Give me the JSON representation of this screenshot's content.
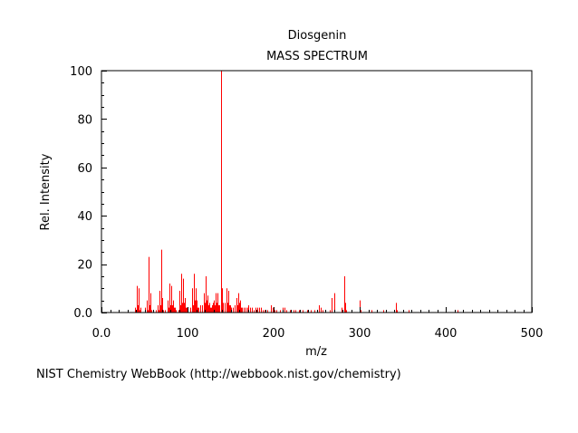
{
  "chart_data": {
    "type": "bar",
    "title": "Diosgenin",
    "subtitle": "MASS SPECTRUM",
    "xlabel": "m/z",
    "ylabel": "Rel. Intensity",
    "xlim": [
      0,
      500
    ],
    "ylim": [
      0,
      100
    ],
    "x_ticks": [
      0,
      100,
      200,
      300,
      400,
      500
    ],
    "x_tick_labels": [
      "0.0",
      "100",
      "200",
      "300",
      "400",
      "500"
    ],
    "y_ticks": [
      0,
      20,
      40,
      60,
      80,
      100
    ],
    "y_tick_labels": [
      "0.0",
      "20",
      "40",
      "60",
      "80",
      "100"
    ],
    "grid": false,
    "series": [
      {
        "color": "#ff0000",
        "peaks": [
          [
            39,
            2
          ],
          [
            41,
            11
          ],
          [
            42,
            3
          ],
          [
            43,
            10
          ],
          [
            44,
            1
          ],
          [
            45,
            2
          ],
          [
            50,
            1
          ],
          [
            51,
            2
          ],
          [
            53,
            5
          ],
          [
            54,
            1
          ],
          [
            55,
            23
          ],
          [
            56,
            3
          ],
          [
            57,
            8
          ],
          [
            58,
            1
          ],
          [
            60,
            1
          ],
          [
            63,
            1
          ],
          [
            65,
            3
          ],
          [
            66,
            1
          ],
          [
            67,
            9
          ],
          [
            68,
            3
          ],
          [
            69,
            26
          ],
          [
            70,
            3
          ],
          [
            71,
            6
          ],
          [
            72,
            1
          ],
          [
            74,
            1
          ],
          [
            77,
            5
          ],
          [
            78,
            2
          ],
          [
            79,
            12
          ],
          [
            80,
            3
          ],
          [
            81,
            11
          ],
          [
            82,
            3
          ],
          [
            83,
            5
          ],
          [
            84,
            2
          ],
          [
            85,
            2
          ],
          [
            86,
            1
          ],
          [
            89,
            1
          ],
          [
            91,
            9
          ],
          [
            92,
            3
          ],
          [
            93,
            16
          ],
          [
            94,
            4
          ],
          [
            95,
            14
          ],
          [
            96,
            4
          ],
          [
            97,
            6
          ],
          [
            98,
            2
          ],
          [
            99,
            2
          ],
          [
            103,
            2
          ],
          [
            105,
            10
          ],
          [
            106,
            3
          ],
          [
            107,
            16
          ],
          [
            108,
            5
          ],
          [
            109,
            10
          ],
          [
            110,
            3
          ],
          [
            111,
            5
          ],
          [
            112,
            2
          ],
          [
            113,
            2
          ],
          [
            115,
            3
          ],
          [
            117,
            3
          ],
          [
            119,
            8
          ],
          [
            120,
            4
          ],
          [
            121,
            15
          ],
          [
            122,
            5
          ],
          [
            123,
            7
          ],
          [
            124,
            3
          ],
          [
            125,
            4
          ],
          [
            126,
            2
          ],
          [
            127,
            2
          ],
          [
            128,
            3
          ],
          [
            129,
            4
          ],
          [
            131,
            5
          ],
          [
            132,
            3
          ],
          [
            133,
            8
          ],
          [
            134,
            4
          ],
          [
            135,
            8
          ],
          [
            136,
            3
          ],
          [
            137,
            3
          ],
          [
            139,
            100
          ],
          [
            140,
            10
          ],
          [
            141,
            4
          ],
          [
            143,
            4
          ],
          [
            145,
            10
          ],
          [
            146,
            4
          ],
          [
            147,
            9
          ],
          [
            148,
            3
          ],
          [
            149,
            3
          ],
          [
            150,
            2
          ],
          [
            151,
            2
          ],
          [
            153,
            2
          ],
          [
            155,
            3
          ],
          [
            157,
            6
          ],
          [
            158,
            3
          ],
          [
            159,
            8
          ],
          [
            160,
            4
          ],
          [
            161,
            5
          ],
          [
            162,
            2
          ],
          [
            163,
            2
          ],
          [
            165,
            2
          ],
          [
            167,
            2
          ],
          [
            169,
            2
          ],
          [
            171,
            3
          ],
          [
            173,
            2
          ],
          [
            175,
            2
          ],
          [
            177,
            1
          ],
          [
            179,
            2
          ],
          [
            181,
            2
          ],
          [
            183,
            2
          ],
          [
            185,
            2
          ],
          [
            187,
            1
          ],
          [
            189,
            1
          ],
          [
            191,
            1
          ],
          [
            193,
            1
          ],
          [
            197,
            3
          ],
          [
            199,
            2
          ],
          [
            201,
            1
          ],
          [
            203,
            1
          ],
          [
            207,
            1
          ],
          [
            211,
            2
          ],
          [
            213,
            2
          ],
          [
            215,
            1
          ],
          [
            219,
            1
          ],
          [
            223,
            1
          ],
          [
            225,
            1
          ],
          [
            229,
            1
          ],
          [
            231,
            1
          ],
          [
            234,
            1
          ],
          [
            239,
            1
          ],
          [
            243,
            1
          ],
          [
            247,
            1
          ],
          [
            253,
            3
          ],
          [
            255,
            2
          ],
          [
            257,
            1
          ],
          [
            265,
            1
          ],
          [
            267,
            6
          ],
          [
            270,
            8
          ],
          [
            271,
            3
          ],
          [
            279,
            2
          ],
          [
            282,
            15
          ],
          [
            283,
            4
          ],
          [
            284,
            1
          ],
          [
            300,
            5
          ],
          [
            301,
            1
          ],
          [
            314,
            1
          ],
          [
            327,
            1
          ],
          [
            342,
            4
          ],
          [
            343,
            1
          ],
          [
            357,
            1
          ],
          [
            414,
            1
          ]
        ]
      }
    ],
    "source_note": "NIST Chemistry WebBook (http://webbook.nist.gov/chemistry)"
  }
}
